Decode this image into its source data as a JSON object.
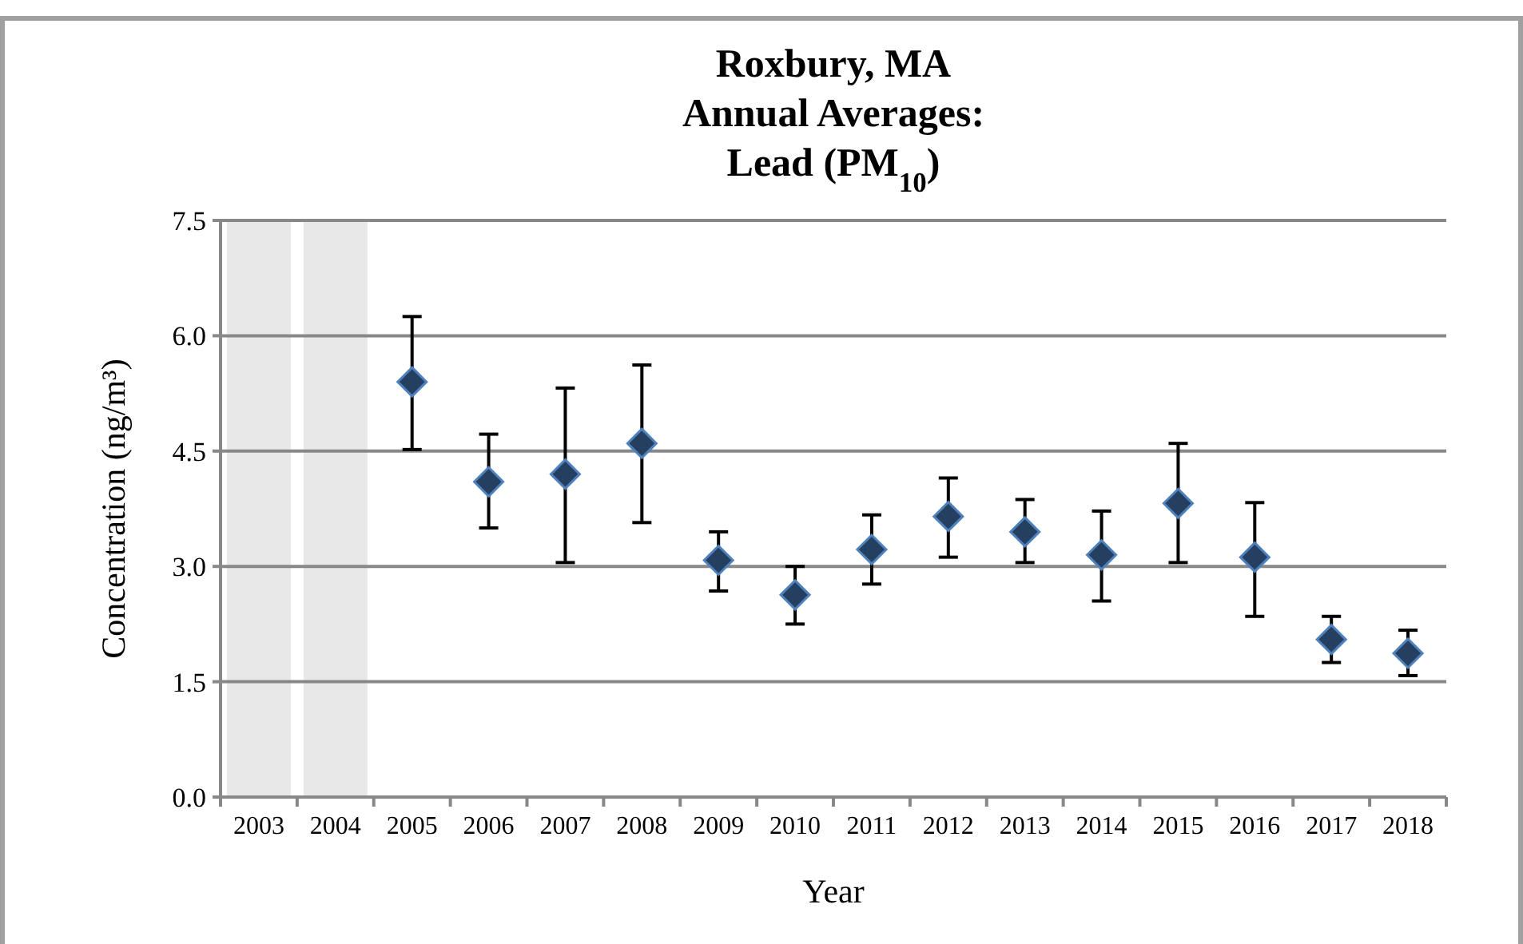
{
  "chart_data": {
    "type": "scatter",
    "title": "Roxbury, MA\nAnnual Averages:\nLead (PM$_{10}$)",
    "xlabel": "Year",
    "ylabel": "Concentration (ng/m³)",
    "categories": [
      "2003",
      "2004",
      "2005",
      "2006",
      "2007",
      "2008",
      "2009",
      "2010",
      "2011",
      "2012",
      "2013",
      "2014",
      "2015",
      "2016",
      "2017",
      "2018"
    ],
    "series": [
      {
        "color": "#243f60",
        "values": [
          null,
          null,
          5.4,
          4.1,
          4.2,
          4.6,
          3.08,
          2.63,
          3.22,
          3.65,
          3.45,
          3.15,
          3.82,
          3.12,
          2.05,
          1.87
        ],
        "errors": [
          null,
          null,
          [
            4.52,
            6.25
          ],
          [
            3.5,
            4.72
          ],
          [
            3.05,
            5.32
          ],
          [
            3.57,
            5.62
          ],
          [
            2.68,
            3.45
          ],
          [
            2.25,
            3.0
          ],
          [
            2.77,
            3.67
          ],
          [
            3.12,
            4.15
          ],
          [
            3.05,
            3.87
          ],
          [
            2.55,
            3.72
          ],
          [
            3.05,
            4.6
          ],
          [
            2.35,
            3.83
          ],
          [
            1.75,
            2.35
          ],
          [
            1.58,
            2.17
          ]
        ]
      }
    ],
    "ylim": [
      0,
      7.5
    ],
    "yticks": [
      {
        "value": 0,
        "label": "0.0"
      },
      {
        "value": 1.5,
        "label": "1.5"
      },
      {
        "value": 3,
        "label": "3.0"
      },
      {
        "value": 4.5,
        "label": "4.5"
      },
      {
        "value": 6,
        "label": "6.0"
      },
      {
        "value": 7.5,
        "label": "7.5"
      }
    ],
    "grid": "y",
    "marker": "diamond",
    "bands": [
      {
        "axis": "x",
        "from": "2003",
        "to": "2003",
        "color": "#e8e8e8"
      },
      {
        "axis": "x",
        "from": "2004",
        "to": "2004",
        "color": "#e8e8e8"
      }
    ]
  }
}
